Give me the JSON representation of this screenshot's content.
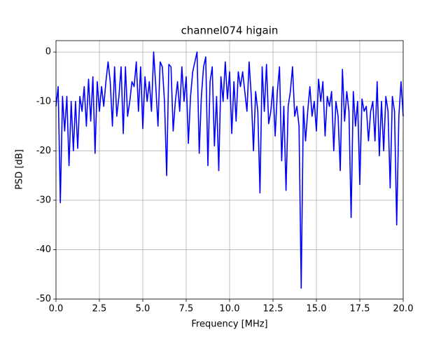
{
  "chart_data": {
    "type": "line",
    "title": "channel074 higain",
    "xlabel": "Frequency [MHz]",
    "ylabel": "PSD [dB]",
    "x": [
      0,
      0.125,
      0.25,
      0.375,
      0.5,
      0.625,
      0.75,
      0.875,
      1,
      1.125,
      1.25,
      1.375,
      1.5,
      1.625,
      1.75,
      1.875,
      2,
      2.125,
      2.25,
      2.375,
      2.5,
      2.625,
      2.75,
      2.875,
      3,
      3.125,
      3.25,
      3.375,
      3.5,
      3.625,
      3.75,
      3.875,
      4,
      4.125,
      4.25,
      4.375,
      4.5,
      4.625,
      4.75,
      4.875,
      5,
      5.125,
      5.25,
      5.375,
      5.5,
      5.625,
      5.75,
      5.875,
      6,
      6.125,
      6.25,
      6.375,
      6.5,
      6.625,
      6.75,
      6.875,
      7,
      7.125,
      7.25,
      7.375,
      7.5,
      7.625,
      7.75,
      7.875,
      8,
      8.125,
      8.25,
      8.375,
      8.5,
      8.625,
      8.75,
      8.875,
      9,
      9.125,
      9.25,
      9.375,
      9.5,
      9.625,
      9.75,
      9.875,
      10,
      10.125,
      10.25,
      10.375,
      10.5,
      10.625,
      10.75,
      10.875,
      11,
      11.125,
      11.25,
      11.375,
      11.5,
      11.625,
      11.75,
      11.875,
      12,
      12.125,
      12.25,
      12.375,
      12.5,
      12.625,
      12.75,
      12.875,
      13,
      13.125,
      13.25,
      13.375,
      13.5,
      13.625,
      13.75,
      13.875,
      14,
      14.125,
      14.25,
      14.375,
      14.5,
      14.625,
      14.75,
      14.875,
      15,
      15.125,
      15.25,
      15.375,
      15.5,
      15.625,
      15.75,
      15.875,
      16,
      16.125,
      16.25,
      16.375,
      16.5,
      16.625,
      16.75,
      16.875,
      17,
      17.125,
      17.25,
      17.375,
      17.5,
      17.625,
      17.75,
      17.875,
      18,
      18.125,
      18.25,
      18.375,
      18.5,
      18.625,
      18.75,
      18.875,
      19,
      19.125,
      19.25,
      19.375,
      19.5,
      19.625,
      19.75,
      19.875,
      20
    ],
    "series": [
      {
        "name": "channel074 higain",
        "color": "#0000ff",
        "values": [
          -11,
          -7,
          -30.5,
          -9,
          -16,
          -9,
          -23,
          -10,
          -20,
          -10,
          -19.5,
          -9,
          -12,
          -7,
          -15,
          -5.5,
          -14,
          -5,
          -20.5,
          -6,
          -12,
          -7,
          -11,
          -6,
          -2,
          -6,
          -15,
          -3,
          -13,
          -9,
          -3,
          -16.5,
          -3,
          -13,
          -10,
          -6,
          -7,
          -2,
          -12,
          -3,
          -15.5,
          -5,
          -10,
          -6,
          -12,
          0,
          -7,
          -15,
          -2,
          -3,
          -10,
          -25,
          -2.5,
          -3,
          -16,
          -10,
          -6,
          -12,
          -3,
          -10,
          -5,
          -18.5,
          -9,
          -4,
          -2,
          0,
          -20.5,
          -9,
          -3,
          -1,
          -23,
          -6,
          -3,
          -19,
          -9,
          -24,
          -5,
          -10,
          -2,
          -9.5,
          -4,
          -16.5,
          -6,
          -14,
          -4,
          -7,
          -4,
          -8,
          -12,
          -2,
          -9,
          -20,
          -8,
          -12,
          -28.5,
          -3,
          -12,
          -2.5,
          -14.5,
          -12,
          -7,
          -17,
          -8,
          -3,
          -22,
          -11,
          -28,
          -11,
          -8,
          -3,
          -13,
          -11,
          -15,
          -47.8,
          -11,
          -18,
          -12,
          -7,
          -13,
          -10,
          -16,
          -5.5,
          -10,
          -6,
          -17,
          -9,
          -11,
          -8,
          -20,
          -10,
          -13,
          -24,
          -3.5,
          -14,
          -8,
          -12,
          -33.5,
          -8,
          -15,
          -10,
          -26.8,
          -9.5,
          -12,
          -11,
          -18,
          -12,
          -10,
          -18,
          -6,
          -21,
          -10,
          -20,
          -9,
          -12,
          -27.5,
          -9,
          -12,
          -35,
          -13,
          -6,
          -13
        ]
      }
    ],
    "xlim": [
      0,
      20
    ],
    "ylim": [
      -50,
      2.3
    ],
    "xticks": [
      {
        "value": 0,
        "label": "0.0"
      },
      2.5,
      {
        "value": 5,
        "label": "5.0"
      },
      7.5,
      {
        "value": 10,
        "label": "10.0"
      },
      12.5,
      {
        "value": 15,
        "label": "15.0"
      },
      17.5,
      {
        "value": 20,
        "label": "20.0"
      }
    ],
    "yticks": [
      0,
      -10,
      -20,
      -30,
      -40,
      -50
    ],
    "grid": true
  }
}
